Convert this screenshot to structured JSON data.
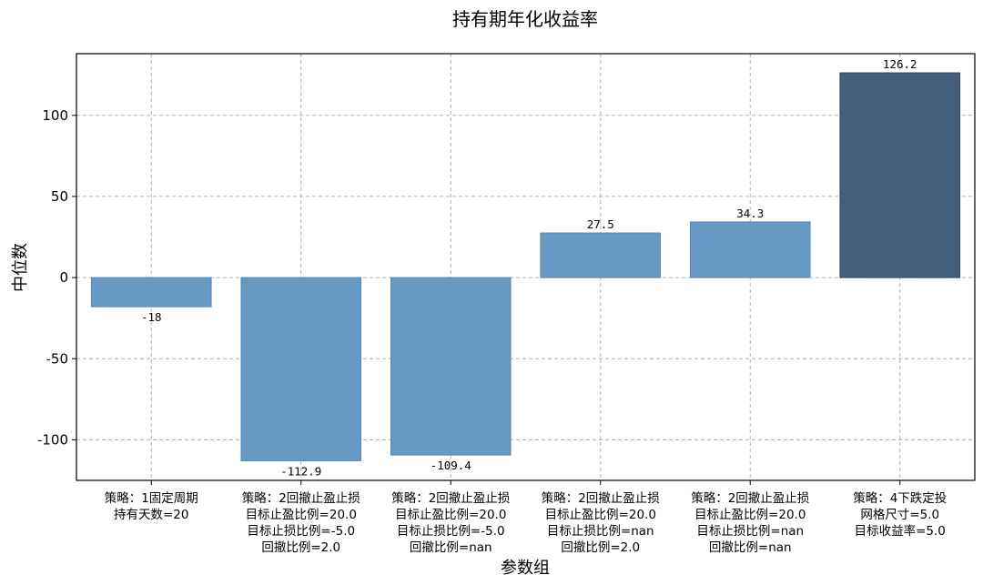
{
  "chart_data": {
    "type": "bar",
    "title": "持有期年化收益率",
    "xlabel": "参数组",
    "ylabel": "中位数",
    "ylim": [
      -125,
      138
    ],
    "yticks": [
      -100,
      -50,
      0,
      50,
      100
    ],
    "grid": true,
    "categories": [
      [
        "策略：1固定周期",
        "持有天数=20"
      ],
      [
        "策略：2回撤止盈止损",
        "目标止盈比例=20.0",
        "目标止损比例=-5.0",
        "回撤比例=2.0"
      ],
      [
        "策略：2回撤止盈止损",
        "目标止盈比例=20.0",
        "目标止损比例=-5.0",
        "回撤比例=nan"
      ],
      [
        "策略：2回撤止盈止损",
        "目标止盈比例=20.0",
        "目标止损比例=nan",
        "回撤比例=2.0"
      ],
      [
        "策略：2回撤止盈止损",
        "目标止盈比例=20.0",
        "目标止损比例=nan",
        "回撤比例=nan"
      ],
      [
        "策略：4下跌定投",
        "网格尺寸=5.0",
        "目标收益率=5.0"
      ]
    ],
    "values": [
      -18,
      -112.9,
      -109.4,
      27.5,
      34.3,
      126.2
    ],
    "value_labels": [
      "-18",
      "-112.9",
      "-109.4",
      "27.5",
      "34.3",
      "126.2"
    ],
    "colors": [
      "#6699c4",
      "#6699c4",
      "#6699c4",
      "#6699c4",
      "#6699c4",
      "#445f7a"
    ],
    "bar_edge_colors": [
      "#5a87ad",
      "#5a87ad",
      "#5a87ad",
      "#5a87ad",
      "#5a87ad",
      "#2f4a63"
    ]
  }
}
